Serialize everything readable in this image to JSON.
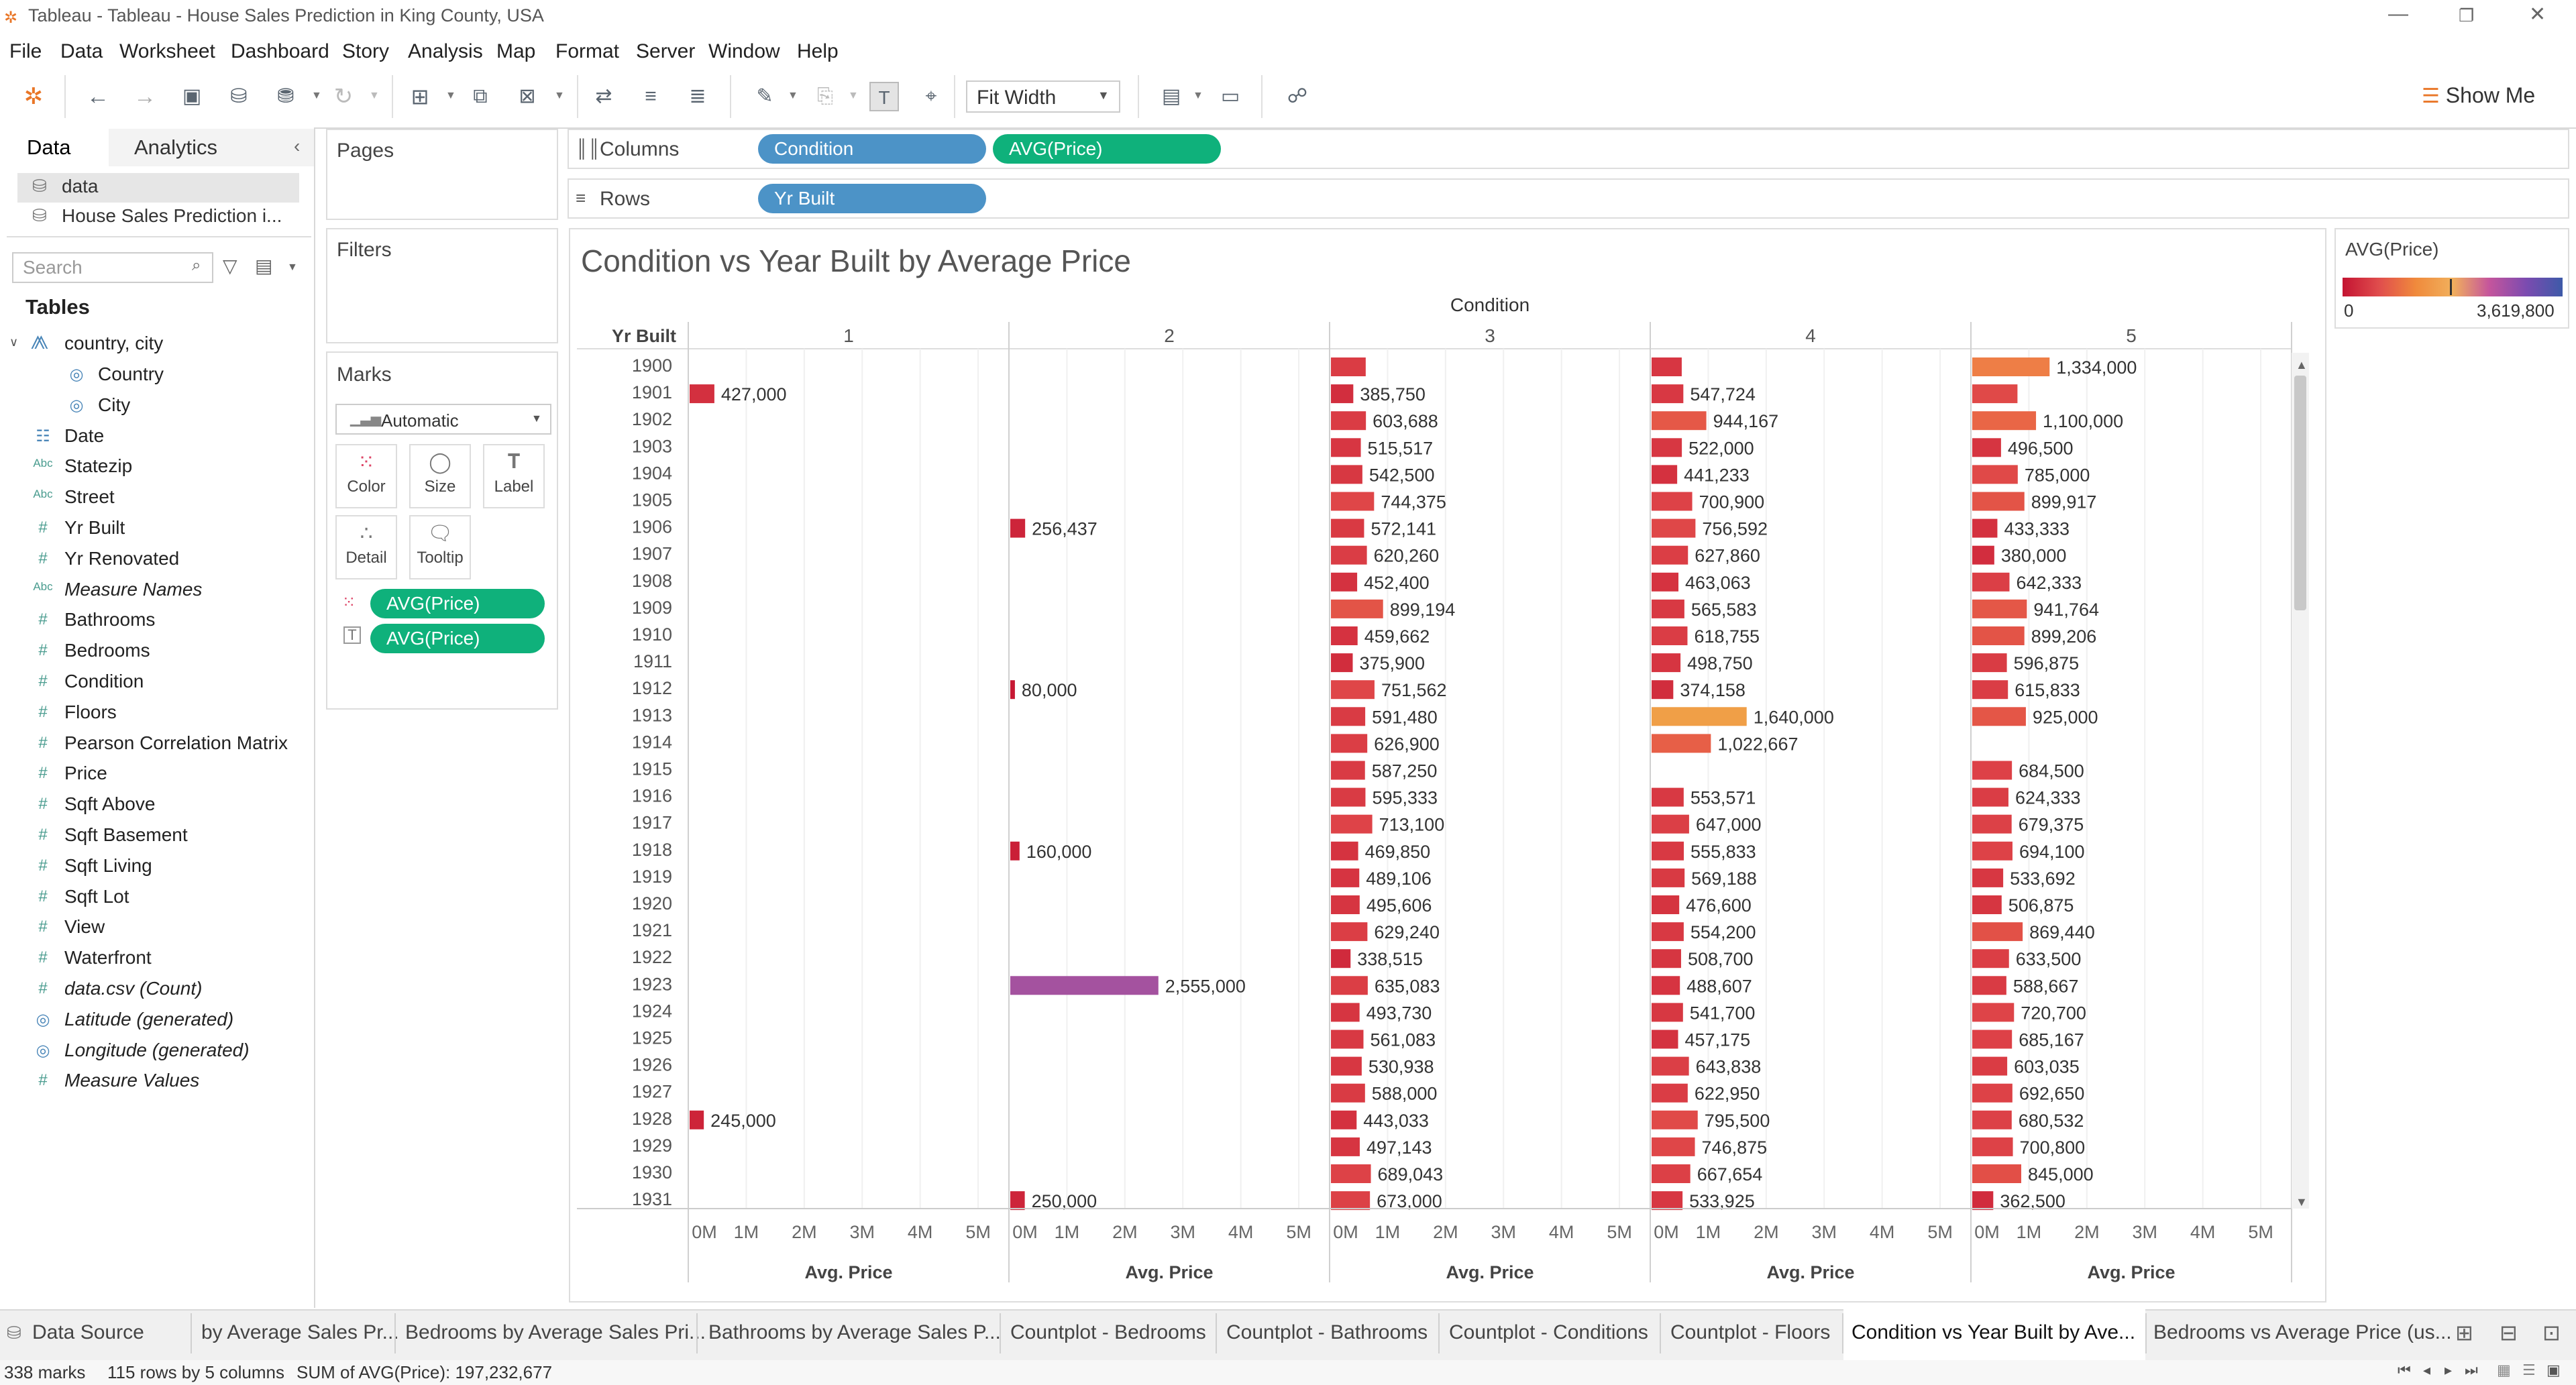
{
  "window": {
    "title": "Tableau - Tableau - House Sales Prediction in King County, USA"
  },
  "menu": [
    "File",
    "Data",
    "Worksheet",
    "Dashboard",
    "Story",
    "Analysis",
    "Map",
    "Format",
    "Server",
    "Window",
    "Help"
  ],
  "toolbar": {
    "fit_label": "Fit Width",
    "show_me_label": "Show Me"
  },
  "data_pane": {
    "tab_data": "Data",
    "tab_analytics": "Analytics",
    "datasources": [
      "data",
      "House Sales Prediction i..."
    ],
    "search_placeholder": "Search",
    "tables_label": "Tables",
    "group_label": "country, city",
    "fields": [
      {
        "label": "Country",
        "icon": "globe-icon",
        "italic": false
      },
      {
        "label": "City",
        "icon": "globe-icon",
        "italic": false
      },
      {
        "label": "Date",
        "icon": "calendar-icon",
        "italic": false
      },
      {
        "label": "Statezip",
        "icon": "abc-icon",
        "italic": false
      },
      {
        "label": "Street",
        "icon": "abc-icon",
        "italic": false
      },
      {
        "label": "Yr Built",
        "icon": "hash-icon",
        "italic": false
      },
      {
        "label": "Yr Renovated",
        "icon": "hash-icon",
        "italic": false
      },
      {
        "label": "Measure Names",
        "icon": "abc-icon",
        "italic": true
      },
      {
        "label": "Bathrooms",
        "icon": "hash-icon",
        "italic": false
      },
      {
        "label": "Bedrooms",
        "icon": "hash-icon",
        "italic": false
      },
      {
        "label": "Condition",
        "icon": "hash-icon",
        "italic": false
      },
      {
        "label": "Floors",
        "icon": "hash-icon",
        "italic": false
      },
      {
        "label": "Pearson Correlation Matrix",
        "icon": "hash-icon",
        "italic": false
      },
      {
        "label": "Price",
        "icon": "hash-icon",
        "italic": false
      },
      {
        "label": "Sqft Above",
        "icon": "hash-icon",
        "italic": false
      },
      {
        "label": "Sqft Basement",
        "icon": "hash-icon",
        "italic": false
      },
      {
        "label": "Sqft Living",
        "icon": "hash-icon",
        "italic": false
      },
      {
        "label": "Sqft Lot",
        "icon": "hash-icon",
        "italic": false
      },
      {
        "label": "View",
        "icon": "hash-icon",
        "italic": false
      },
      {
        "label": "Waterfront",
        "icon": "hash-icon",
        "italic": false
      },
      {
        "label": "data.csv (Count)",
        "icon": "hash-icon",
        "italic": true
      },
      {
        "label": "Latitude (generated)",
        "icon": "globe-icon",
        "italic": true
      },
      {
        "label": "Longitude (generated)",
        "icon": "globe-icon",
        "italic": true
      },
      {
        "label": "Measure Values",
        "icon": "hash-icon",
        "italic": true
      }
    ]
  },
  "cards": {
    "pages": "Pages",
    "filters": "Filters",
    "marks": "Marks",
    "mark_type": "Automatic",
    "mark_buttons": [
      "Color",
      "Size",
      "Label",
      "Detail",
      "Tooltip"
    ],
    "mark_pills": [
      "AVG(Price)",
      "AVG(Price)"
    ]
  },
  "shelves": {
    "columns_label": "Columns",
    "rows_label": "Rows",
    "columns_pills": [
      "Condition",
      "AVG(Price)"
    ],
    "rows_pills": [
      "Yr Built"
    ]
  },
  "legend": {
    "title": "AVG(Price)",
    "min": "0",
    "max": "3,619,800"
  },
  "sheet_tabs": [
    "Data Source",
    "by Average Sales Pr...",
    "Bedrooms by Average Sales Pri...",
    "Bathrooms by Average Sales P...",
    "Countplot - Bedrooms",
    "Countplot - Bathrooms",
    "Countplot - Conditions",
    "Countplot - Floors",
    "Condition vs Year Built by Ave...",
    "Bedrooms vs Average Price (us..."
  ],
  "status": {
    "marks": "338 marks",
    "rows": "115 rows by 5 columns",
    "sum": "SUM of AVG(Price): 197,232,677"
  },
  "chart_data": {
    "type": "bar",
    "title": "Condition vs Year Built by Average Price",
    "column_header": "Condition",
    "row_header": "Yr Built",
    "panes": [
      "1",
      "2",
      "3",
      "4",
      "5"
    ],
    "xlabel": "Avg. Price",
    "xlim": [
      0,
      5300000
    ],
    "x_ticks": [
      "0M",
      "1M",
      "2M",
      "3M",
      "4M",
      "5M"
    ],
    "x_tick_values": [
      0,
      1000000,
      2000000,
      3000000,
      4000000,
      5000000
    ],
    "color_range": [
      0,
      3619800
    ],
    "years": [
      1900,
      1901,
      1902,
      1903,
      1904,
      1905,
      1906,
      1907,
      1908,
      1909,
      1910,
      1911,
      1912,
      1913,
      1914,
      1915,
      1916,
      1917,
      1918,
      1919,
      1920,
      1921,
      1922,
      1923,
      1924,
      1925,
      1926,
      1927,
      1928,
      1929,
      1930,
      1931
    ],
    "series": [
      {
        "name": "1",
        "values": [
          null,
          427000,
          null,
          null,
          null,
          null,
          null,
          null,
          null,
          null,
          null,
          null,
          null,
          null,
          null,
          null,
          null,
          null,
          null,
          null,
          null,
          null,
          null,
          null,
          null,
          null,
          null,
          null,
          245000,
          null,
          null,
          null
        ]
      },
      {
        "name": "2",
        "values": [
          null,
          null,
          null,
          null,
          null,
          null,
          256437,
          null,
          null,
          null,
          null,
          null,
          80000,
          null,
          null,
          null,
          null,
          null,
          160000,
          null,
          null,
          null,
          null,
          2555000,
          null,
          null,
          null,
          null,
          null,
          null,
          null,
          250000
        ]
      },
      {
        "name": "3",
        "values": [
          600000,
          385750,
          603688,
          515517,
          542500,
          744375,
          572141,
          620260,
          452400,
          899194,
          459662,
          375900,
          751562,
          591480,
          626900,
          587250,
          595333,
          713100,
          469850,
          489106,
          495606,
          629240,
          338515,
          635083,
          493730,
          561083,
          530938,
          588000,
          443033,
          497143,
          689043,
          673000
        ],
        "labels_shown": [
          false,
          true,
          true,
          true,
          true,
          true,
          true,
          true,
          true,
          true,
          true,
          true,
          true,
          true,
          true,
          true,
          true,
          true,
          true,
          true,
          true,
          true,
          true,
          true,
          true,
          true,
          true,
          true,
          true,
          true,
          true,
          true
        ]
      },
      {
        "name": "4",
        "values": [
          520000,
          547724,
          944167,
          522000,
          441233,
          700900,
          756592,
          627860,
          463063,
          565583,
          618755,
          498750,
          374158,
          1640000,
          1022667,
          null,
          553571,
          647000,
          555833,
          569188,
          476600,
          554200,
          508700,
          488607,
          541700,
          457175,
          643838,
          622950,
          795500,
          746875,
          667654,
          533925
        ],
        "labels_shown": [
          false,
          true,
          true,
          true,
          true,
          true,
          true,
          true,
          true,
          true,
          true,
          true,
          true,
          true,
          true,
          false,
          true,
          true,
          true,
          true,
          true,
          true,
          true,
          true,
          true,
          true,
          true,
          true,
          true,
          true,
          true,
          true
        ]
      },
      {
        "name": "5",
        "values": [
          1334000,
          780000,
          1100000,
          496500,
          785000,
          899917,
          433333,
          380000,
          642333,
          941764,
          899206,
          596875,
          615833,
          925000,
          null,
          684500,
          624333,
          679375,
          694100,
          533692,
          506875,
          869440,
          633500,
          588667,
          720700,
          685167,
          603035,
          692650,
          680532,
          700800,
          845000,
          362500
        ],
        "labels_shown": [
          true,
          false,
          true,
          true,
          true,
          true,
          true,
          true,
          true,
          true,
          true,
          true,
          true,
          true,
          false,
          true,
          true,
          true,
          true,
          true,
          true,
          true,
          true,
          true,
          true,
          true,
          true,
          true,
          true,
          true,
          true,
          true
        ]
      }
    ]
  }
}
